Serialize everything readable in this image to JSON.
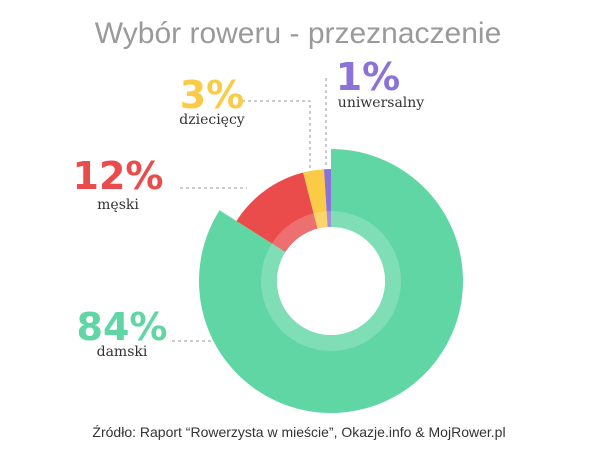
{
  "chart_data": {
    "type": "pie",
    "title": "Wybór roweru - przeznaczenie",
    "categories": [
      "damski",
      "męski",
      "dziecięcy",
      "uniwersalny"
    ],
    "values": [
      84,
      12,
      3,
      1
    ],
    "value_labels": [
      "84%",
      "12%",
      "3%",
      "1%"
    ],
    "colors": [
      "#60d6a4",
      "#ea4c4c",
      "#fbcb48",
      "#8a72d6"
    ],
    "donut": true,
    "legend": "none",
    "source": "Źródło: Raport “Rowerzysta w mieście”, Okazje.info & MojRower.pl"
  }
}
